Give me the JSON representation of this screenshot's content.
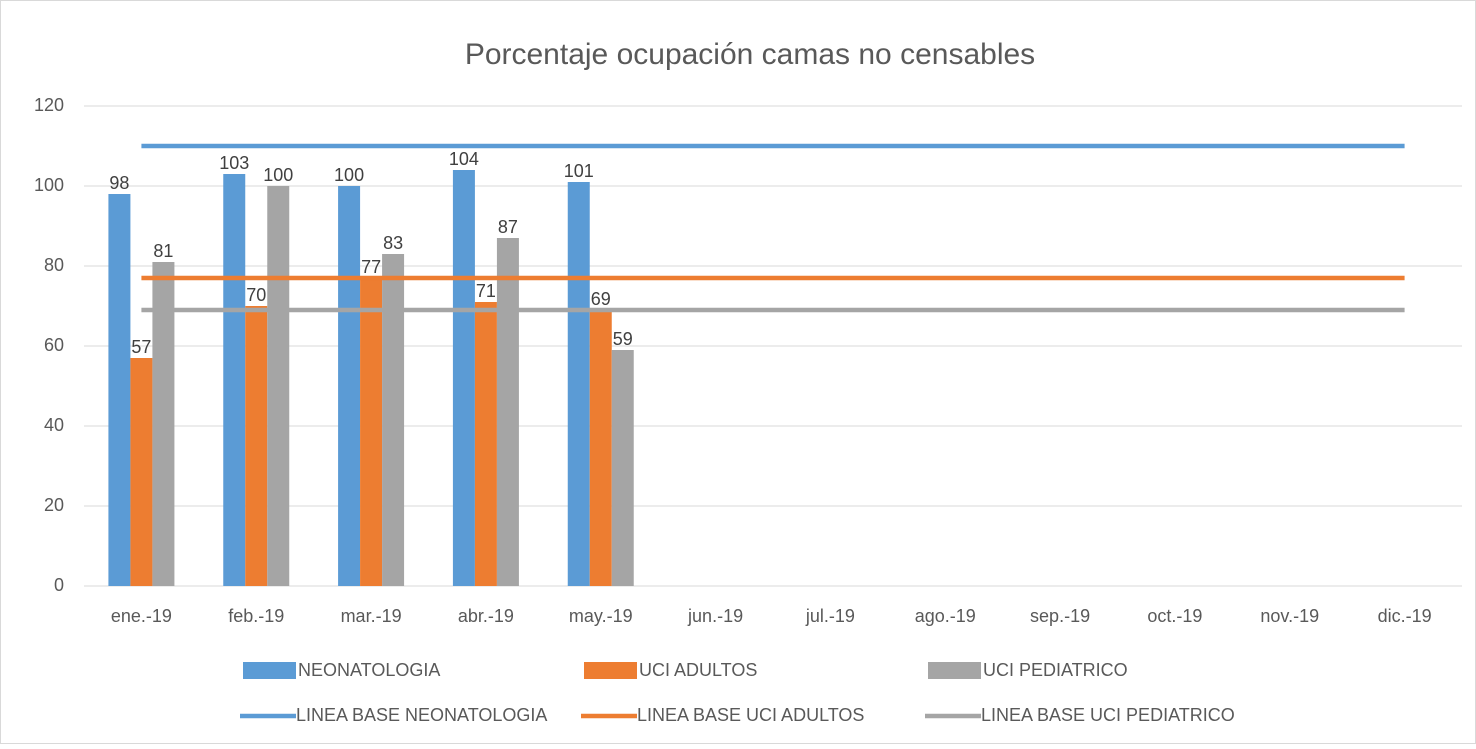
{
  "chart_data": {
    "type": "bar",
    "title": "Porcentaje ocupación camas no censables",
    "categories": [
      "ene.-19",
      "feb.-19",
      "mar.-19",
      "abr.-19",
      "may.-19",
      "jun.-19",
      "jul.-19",
      "ago.-19",
      "sep.-19",
      "oct.-19",
      "nov.-19",
      "dic.-19"
    ],
    "series": [
      {
        "name": "NEONATOLOGIA",
        "type": "bar",
        "color": "#5b9bd5",
        "values": [
          98,
          103,
          100,
          104,
          101,
          null,
          null,
          null,
          null,
          null,
          null,
          null
        ]
      },
      {
        "name": "UCI ADULTOS",
        "type": "bar",
        "color": "#ed7d31",
        "values": [
          57,
          70,
          77,
          71,
          69,
          null,
          null,
          null,
          null,
          null,
          null,
          null
        ]
      },
      {
        "name": "UCI PEDIATRICO",
        "type": "bar",
        "color": "#a5a5a5",
        "values": [
          81,
          100,
          83,
          87,
          59,
          null,
          null,
          null,
          null,
          null,
          null,
          null
        ]
      },
      {
        "name": "LINEA BASE NEONATOLOGIA",
        "type": "line",
        "color": "#5b9bd5",
        "values": [
          110,
          110,
          110,
          110,
          110,
          110,
          110,
          110,
          110,
          110,
          110,
          110
        ]
      },
      {
        "name": "LINEA BASE UCI ADULTOS",
        "type": "line",
        "color": "#ed7d31",
        "values": [
          77,
          77,
          77,
          77,
          77,
          77,
          77,
          77,
          77,
          77,
          77,
          77
        ]
      },
      {
        "name": "LINEA BASE UCI PEDIATRICO",
        "type": "line",
        "color": "#a5a5a5",
        "values": [
          69,
          69,
          69,
          69,
          69,
          69,
          69,
          69,
          69,
          69,
          69,
          69
        ]
      }
    ],
    "ylim": [
      0,
      120
    ],
    "yticks": [
      0,
      20,
      40,
      60,
      80,
      100,
      120
    ],
    "grid": true,
    "legend": "bottom"
  }
}
